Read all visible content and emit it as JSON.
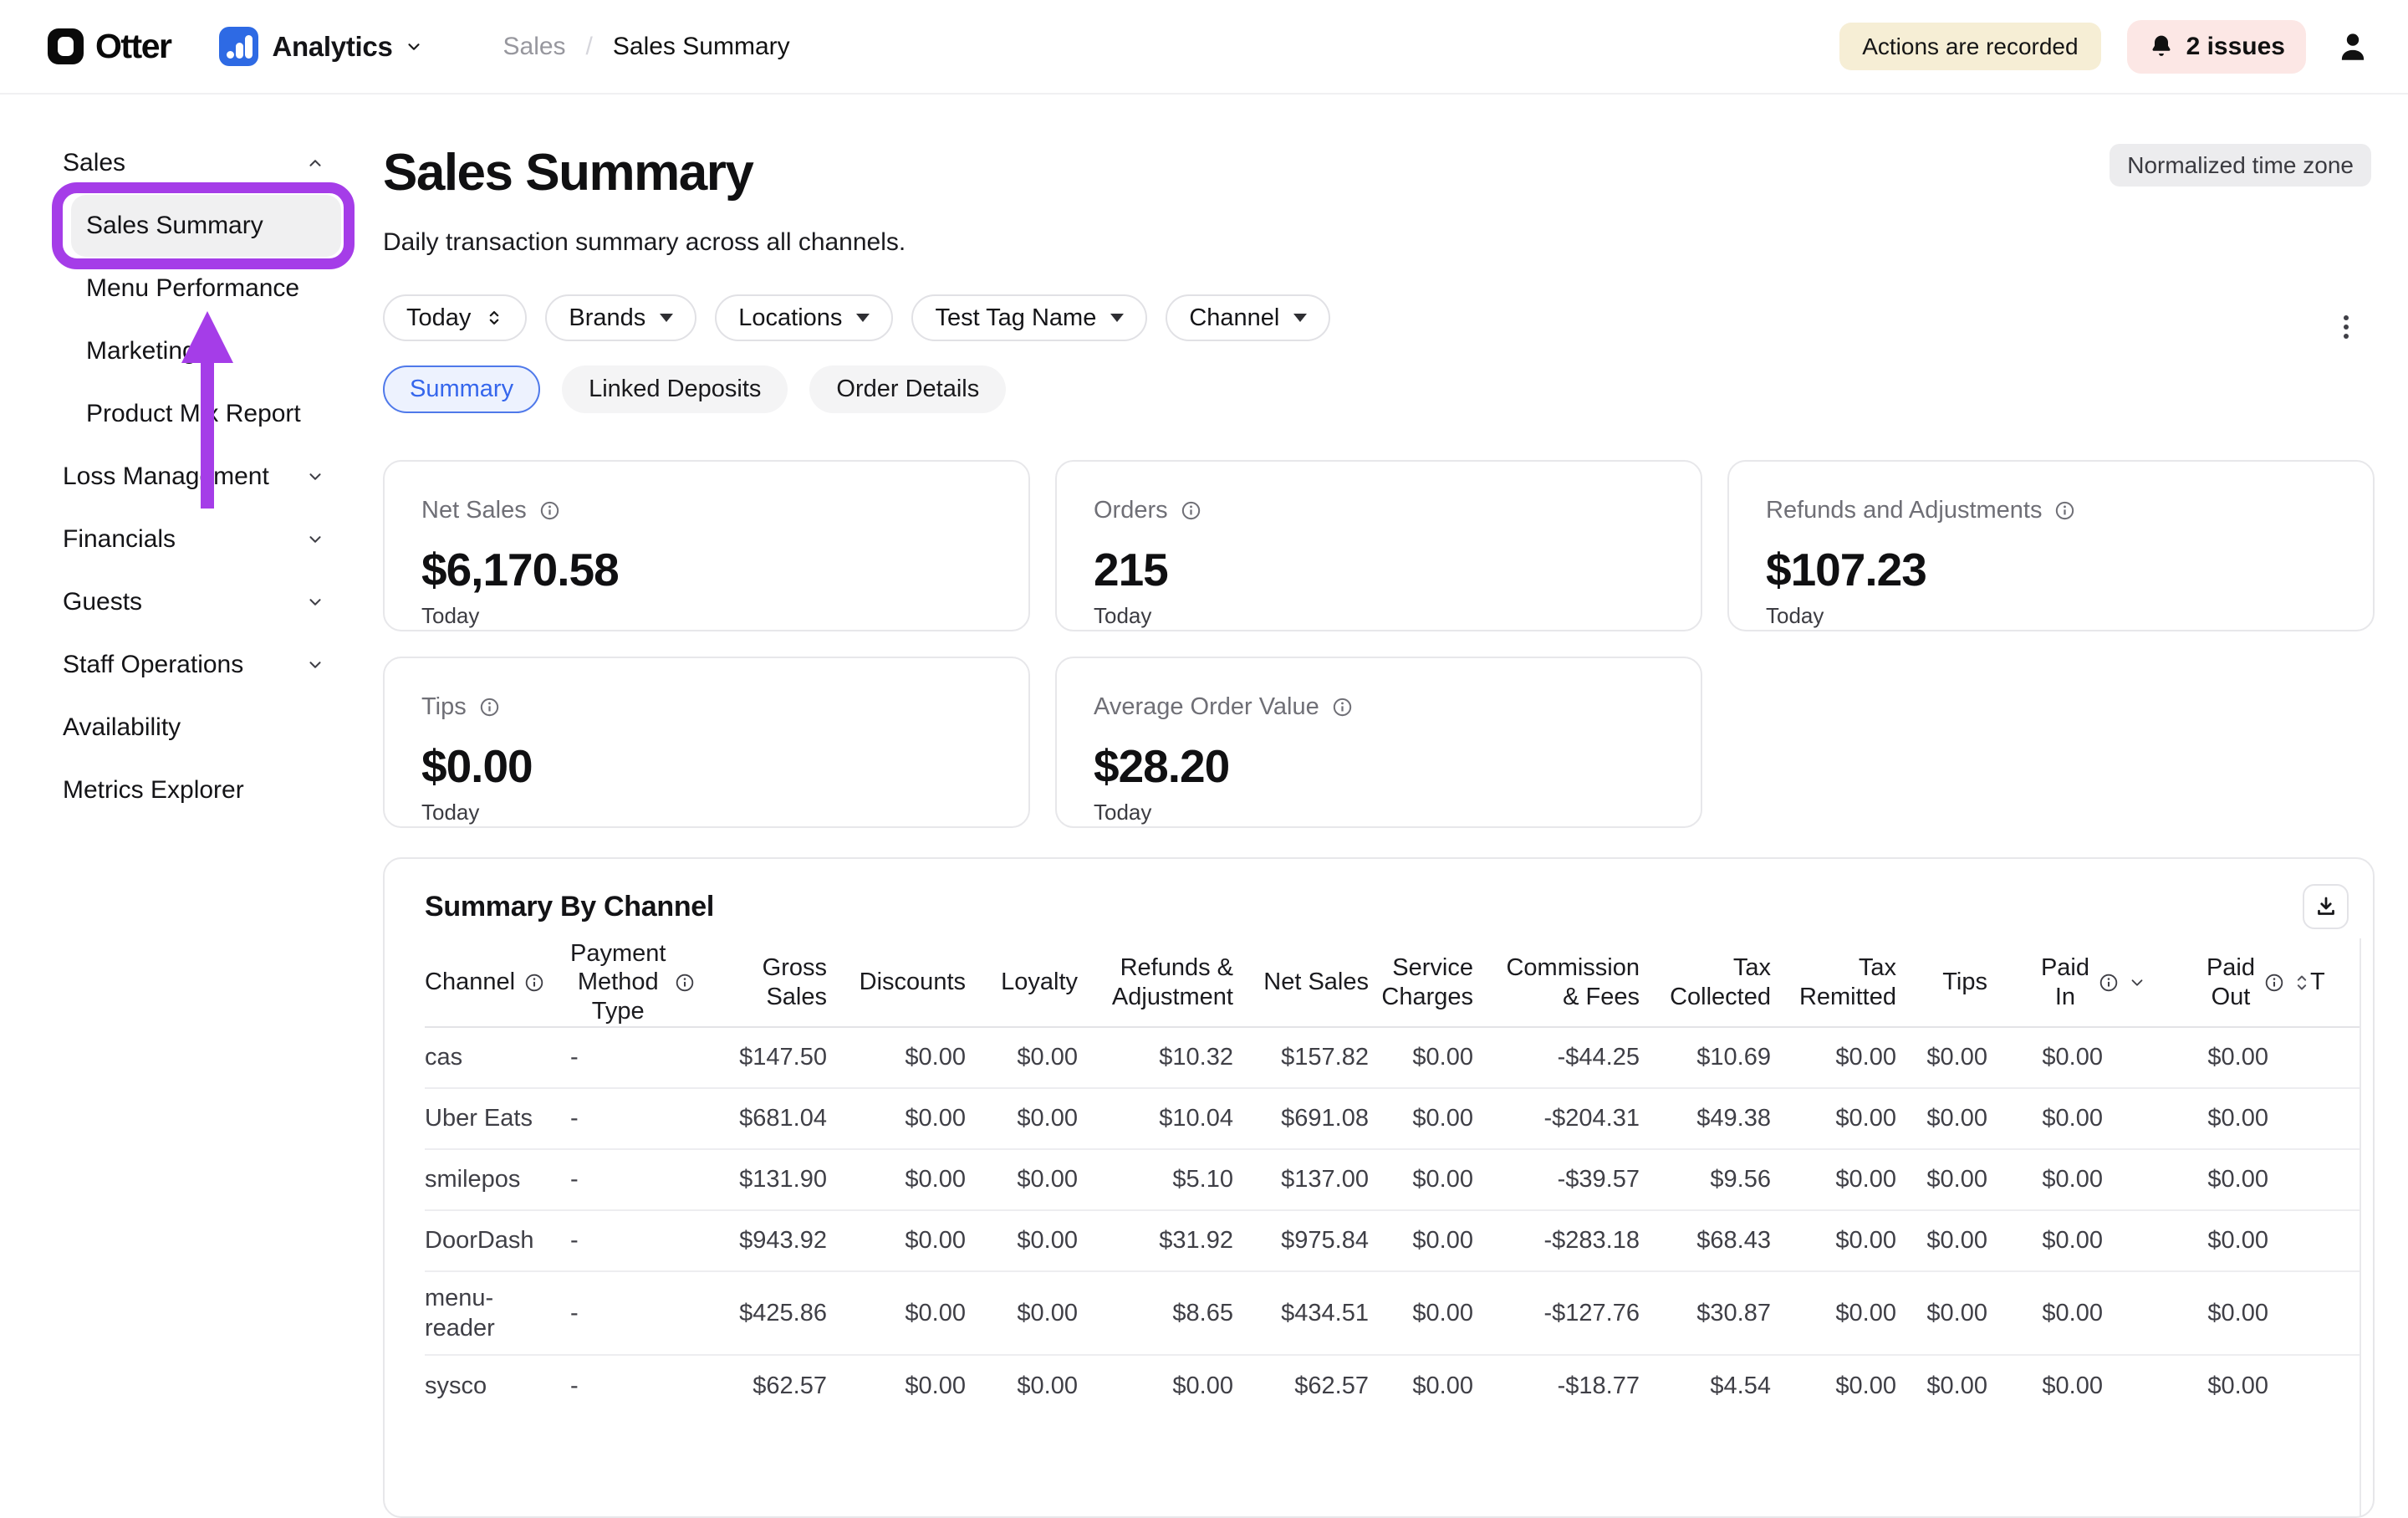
{
  "colors": {
    "annotation_purple": "#a53de8",
    "brand_blue": "#2e6ae4",
    "active_tab_blue": "#3566ec",
    "recorded_badge_bg": "#f6eed5",
    "issues_badge_bg": "#fce7e5"
  },
  "header": {
    "brand": "Otter",
    "product": "Analytics",
    "breadcrumb": {
      "parent": "Sales",
      "separator": "/",
      "current": "Sales Summary"
    },
    "recorded_badge": "Actions are recorded",
    "issues_badge": "2 issues"
  },
  "sidebar": {
    "items": [
      {
        "label": "Sales",
        "type": "section",
        "chevron": "up"
      },
      {
        "label": "Sales Summary",
        "type": "subitem",
        "selected": true,
        "annotated": true
      },
      {
        "label": "Menu Performance",
        "type": "subitem"
      },
      {
        "label": "Marketing",
        "type": "subitem"
      },
      {
        "label": "Product Mix Report",
        "type": "subitem"
      },
      {
        "label": "Loss Management",
        "type": "section",
        "chevron": "down"
      },
      {
        "label": "Financials",
        "type": "section",
        "chevron": "down"
      },
      {
        "label": "Guests",
        "type": "section",
        "chevron": "down"
      },
      {
        "label": "Staff Operations",
        "type": "section",
        "chevron": "down"
      },
      {
        "label": "Availability",
        "type": "section"
      },
      {
        "label": "Metrics Explorer",
        "type": "section"
      }
    ]
  },
  "page": {
    "title": "Sales Summary",
    "subtitle": "Daily transaction summary across all channels.",
    "timezone_badge": "Normalized time zone"
  },
  "filters": [
    {
      "label": "Today",
      "icon": "select-arrows"
    },
    {
      "label": "Brands",
      "icon": "caret-down"
    },
    {
      "label": "Locations",
      "icon": "caret-down"
    },
    {
      "label": "Test Tag Name",
      "icon": "caret-down"
    },
    {
      "label": "Channel",
      "icon": "caret-down"
    }
  ],
  "tabs": [
    {
      "label": "Summary",
      "active": true
    },
    {
      "label": "Linked Deposits",
      "active": false
    },
    {
      "label": "Order Details",
      "active": false
    }
  ],
  "metrics": [
    {
      "label": "Net Sales",
      "value": "$6,170.58",
      "period": "Today"
    },
    {
      "label": "Orders",
      "value": "215",
      "period": "Today"
    },
    {
      "label": "Refunds and Adjustments",
      "value": "$107.23",
      "period": "Today"
    },
    {
      "label": "Tips",
      "value": "$0.00",
      "period": "Today"
    },
    {
      "label": "Average Order Value",
      "value": "$28.20",
      "period": "Today"
    }
  ],
  "table": {
    "title": "Summary By Channel",
    "columns": [
      "Channel",
      "Payment\nMethod\nType",
      "Gross\nSales",
      "Discounts",
      "Loyalty",
      "Refunds &\nAdjustment",
      "Net Sales",
      "Service\nCharges",
      "Commission\n& Fees",
      "Tax\nCollected",
      "Tax\nRemitted",
      "Tips",
      "Paid\nIn",
      "Paid\nOut",
      "T"
    ],
    "rows": [
      {
        "channel": "cas",
        "values": [
          "-",
          "$147.50",
          "$0.00",
          "$0.00",
          "$10.32",
          "$157.82",
          "$0.00",
          "-$44.25",
          "$10.69",
          "$0.00",
          "$0.00",
          "$0.00",
          "$0.00"
        ]
      },
      {
        "channel": "Uber Eats",
        "values": [
          "-",
          "$681.04",
          "$0.00",
          "$0.00",
          "$10.04",
          "$691.08",
          "$0.00",
          "-$204.31",
          "$49.38",
          "$0.00",
          "$0.00",
          "$0.00",
          "$0.00"
        ]
      },
      {
        "channel": "smilepos",
        "values": [
          "-",
          "$131.90",
          "$0.00",
          "$0.00",
          "$5.10",
          "$137.00",
          "$0.00",
          "-$39.57",
          "$9.56",
          "$0.00",
          "$0.00",
          "$0.00",
          "$0.00"
        ]
      },
      {
        "channel": "DoorDash",
        "values": [
          "-",
          "$943.92",
          "$0.00",
          "$0.00",
          "$31.92",
          "$975.84",
          "$0.00",
          "-$283.18",
          "$68.43",
          "$0.00",
          "$0.00",
          "$0.00",
          "$0.00"
        ]
      },
      {
        "channel": "menu-\nreader",
        "values": [
          "-",
          "$425.86",
          "$0.00",
          "$0.00",
          "$8.65",
          "$434.51",
          "$0.00",
          "-$127.76",
          "$30.87",
          "$0.00",
          "$0.00",
          "$0.00",
          "$0.00"
        ]
      },
      {
        "channel": "sysco",
        "values": [
          "-",
          "$62.57",
          "$0.00",
          "$0.00",
          "$0.00",
          "$62.57",
          "$0.00",
          "-$18.77",
          "$4.54",
          "$0.00",
          "$0.00",
          "$0.00",
          "$0.00"
        ]
      }
    ]
  }
}
